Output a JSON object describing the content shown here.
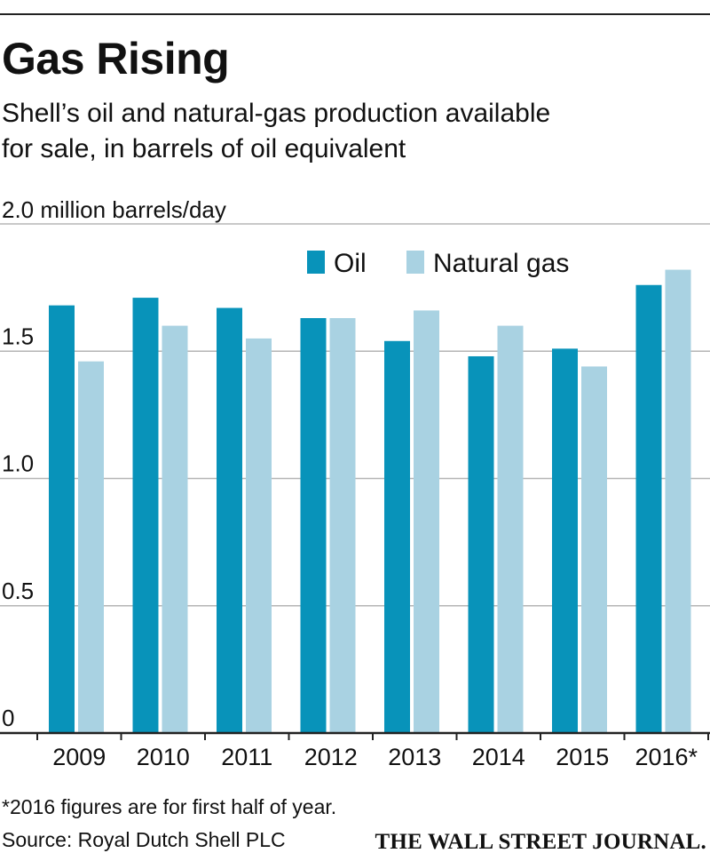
{
  "header": {
    "title": "Gas Rising",
    "subtitle_line1": "Shell’s oil and natural-gas production available",
    "subtitle_line2": "for sale, in barrels of oil equivalent",
    "unit_label": "2.0 million barrels/day"
  },
  "colors": {
    "oil": "#0893BA",
    "gas": "#A9D2E2",
    "grid": "#b5b5b5",
    "axis": "#222222"
  },
  "chart_data": {
    "type": "bar",
    "title": "Gas Rising",
    "ylabel": "2.0 million barrels/day",
    "ylim": [
      0,
      2.0
    ],
    "yticks": [
      {
        "value": 0,
        "label": "0"
      },
      {
        "value": 0.5,
        "label": "0.5"
      },
      {
        "value": 1.0,
        "label": "1.0"
      },
      {
        "value": 1.5,
        "label": "1.5"
      },
      {
        "value": 2.0,
        "label": ""
      }
    ],
    "categories": [
      "2009",
      "2010",
      "2011",
      "2012",
      "2013",
      "2014",
      "2015",
      "2016*"
    ],
    "series": [
      {
        "name": "Oil",
        "color_key": "oil",
        "values": [
          1.68,
          1.71,
          1.67,
          1.63,
          1.54,
          1.48,
          1.51,
          1.76
        ]
      },
      {
        "name": "Natural gas",
        "color_key": "gas",
        "values": [
          1.46,
          1.6,
          1.55,
          1.63,
          1.66,
          1.6,
          1.44,
          1.82
        ]
      }
    ],
    "grid": true,
    "legend_position": "top-right"
  },
  "footer": {
    "footnote": "*2016 figures are for first half of year.",
    "source": "Source: Royal Dutch Shell PLC",
    "publisher": "THE WALL STREET JOURNAL."
  }
}
